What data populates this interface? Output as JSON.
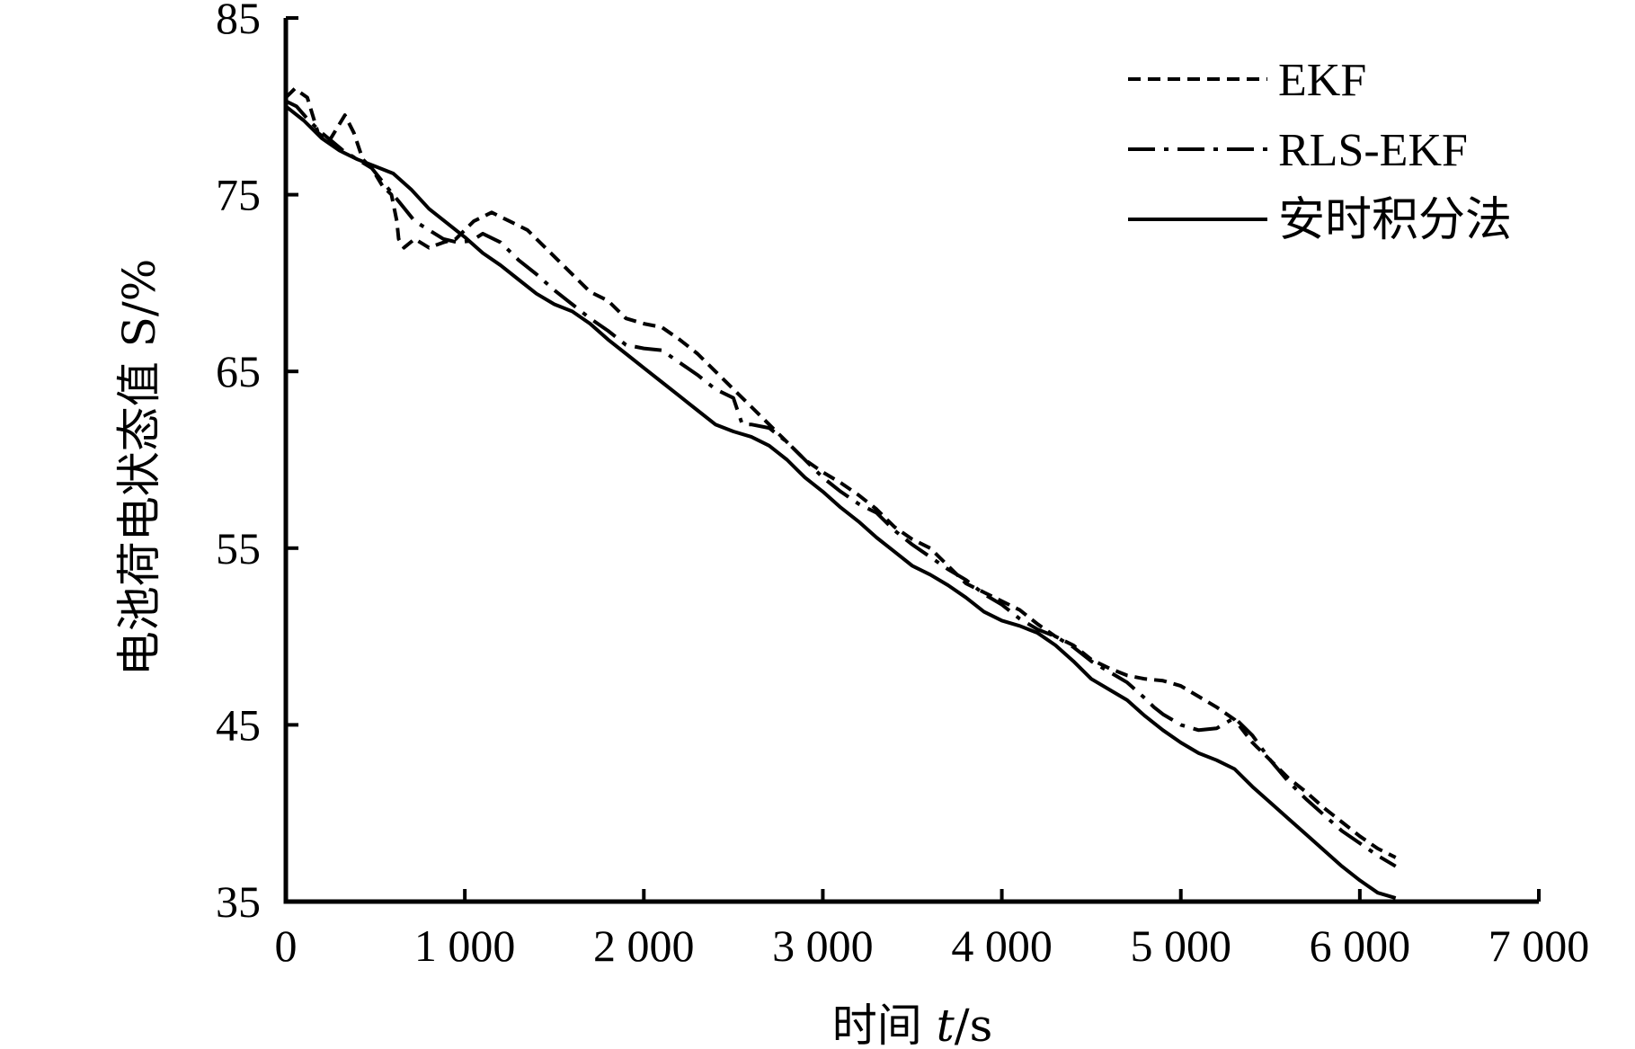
{
  "chart_data": {
    "type": "line",
    "title": "",
    "xlabel": "时间 t/s",
    "xlabel_parts": [
      "时间 ",
      "t",
      "/s"
    ],
    "ylabel": "电池荷电状态值 S/%",
    "xlim": [
      0,
      7000
    ],
    "ylim": [
      35,
      85
    ],
    "x_ticks": [
      0,
      1000,
      2000,
      3000,
      4000,
      5000,
      6000,
      7000
    ],
    "x_tick_labels": [
      "0",
      "1 000",
      "2 000",
      "3 000",
      "4 000",
      "5 000",
      "6 000",
      "7 000"
    ],
    "y_ticks": [
      35,
      45,
      55,
      65,
      75,
      85
    ],
    "y_tick_labels": [
      "35",
      "45",
      "55",
      "65",
      "75",
      "85"
    ],
    "grid": false,
    "legend_position": "top-right",
    "series": [
      {
        "name": "EKF",
        "line_style": "dashed",
        "color": "#000000",
        "x": [
          0,
          50,
          120,
          180,
          240,
          300,
          330,
          380,
          430,
          480,
          540,
          590,
          620,
          630,
          660,
          720,
          800,
          880,
          950,
          1000,
          1050,
          1150,
          1250,
          1350,
          1400,
          1500,
          1600,
          1700,
          1800,
          1900,
          2000,
          2100,
          2200,
          2300,
          2400,
          2500,
          2600,
          2700,
          2800,
          2900,
          3000,
          3100,
          3200,
          3300,
          3400,
          3500,
          3600,
          3700,
          3800,
          3900,
          4000,
          4100,
          4200,
          4300,
          4400,
          4500,
          4600,
          4700,
          4800,
          4900,
          5000,
          5100,
          5200,
          5300,
          5400,
          5500,
          5600,
          5700,
          5800,
          5900,
          6000,
          6100,
          6200
        ],
        "y": [
          80.5,
          81.0,
          80.5,
          78.5,
          78.0,
          79.0,
          79.5,
          78.5,
          77.0,
          76.5,
          75.5,
          75.0,
          73.5,
          72.5,
          72.0,
          72.5,
          72.0,
          72.3,
          72.5,
          73.0,
          73.5,
          74.0,
          73.5,
          73.0,
          72.5,
          71.5,
          70.5,
          69.5,
          69.0,
          68.0,
          67.7,
          67.5,
          66.8,
          66.0,
          65.0,
          64.0,
          63.0,
          62.0,
          61.0,
          60.0,
          59.3,
          58.7,
          58.0,
          57.2,
          56.2,
          55.5,
          55.0,
          54.0,
          53.0,
          52.5,
          52.0,
          51.5,
          50.7,
          50.0,
          49.5,
          48.7,
          48.2,
          47.8,
          47.6,
          47.5,
          47.2,
          46.6,
          46.0,
          45.3,
          44.0,
          43.0,
          42.0,
          41.2,
          40.3,
          39.5,
          38.7,
          38.0,
          37.5
        ]
      },
      {
        "name": "RLS-EKF",
        "line_style": "dashdot",
        "color": "#000000",
        "x": [
          0,
          60,
          120,
          200,
          260,
          320,
          400,
          480,
          560,
          640,
          720,
          800,
          880,
          960,
          1040,
          1100,
          1200,
          1300,
          1400,
          1500,
          1600,
          1700,
          1800,
          1900,
          2000,
          2100,
          2200,
          2300,
          2400,
          2500,
          2550,
          2600,
          2700,
          2800,
          2900,
          3000,
          3100,
          3200,
          3300,
          3400,
          3500,
          3600,
          3700,
          3800,
          3900,
          4000,
          4100,
          4200,
          4300,
          4400,
          4500,
          4600,
          4700,
          4800,
          4850,
          4900,
          4950,
          5000,
          5100,
          5200,
          5300,
          5400,
          5500,
          5600,
          5700,
          5800,
          5900,
          6000,
          6100,
          6200
        ],
        "y": [
          80.3,
          80.0,
          79.3,
          78.5,
          78.0,
          77.5,
          77.0,
          76.5,
          75.5,
          74.5,
          73.5,
          73.0,
          72.5,
          72.3,
          72.4,
          72.8,
          72.3,
          71.3,
          70.5,
          69.6,
          68.8,
          68.0,
          67.3,
          66.5,
          66.3,
          66.2,
          65.5,
          64.8,
          64.0,
          63.5,
          62.0,
          62.0,
          61.8,
          61.0,
          60.0,
          59.0,
          58.2,
          57.5,
          57.0,
          56.0,
          55.2,
          54.5,
          53.8,
          53.2,
          52.4,
          51.8,
          51.0,
          50.4,
          50.0,
          49.4,
          48.6,
          48.0,
          47.4,
          46.5,
          46.0,
          45.6,
          45.3,
          45.0,
          44.7,
          44.8,
          45.4,
          44.4,
          43.0,
          41.8,
          40.8,
          39.9,
          39.0,
          38.3,
          37.6,
          37.0
        ]
      },
      {
        "name": "安时积分法",
        "line_style": "solid",
        "color": "#000000",
        "x": [
          0,
          100,
          200,
          300,
          400,
          500,
          600,
          700,
          800,
          900,
          1000,
          1100,
          1200,
          1300,
          1400,
          1500,
          1600,
          1700,
          1800,
          1900,
          2000,
          2100,
          2200,
          2300,
          2400,
          2500,
          2600,
          2700,
          2800,
          2900,
          3000,
          3100,
          3200,
          3300,
          3400,
          3500,
          3600,
          3700,
          3800,
          3900,
          4000,
          4100,
          4200,
          4300,
          4400,
          4500,
          4600,
          4700,
          4800,
          4900,
          5000,
          5100,
          5200,
          5300,
          5400,
          5500,
          5600,
          5700,
          5800,
          5900,
          6000,
          6100,
          6200
        ],
        "y": [
          80.0,
          79.2,
          78.2,
          77.5,
          77.0,
          76.6,
          76.2,
          75.3,
          74.2,
          73.4,
          72.6,
          71.7,
          71.0,
          70.2,
          69.4,
          68.8,
          68.4,
          67.7,
          66.8,
          66.0,
          65.2,
          64.4,
          63.6,
          62.8,
          62.0,
          61.6,
          61.3,
          60.8,
          60.0,
          59.0,
          58.2,
          57.3,
          56.5,
          55.6,
          54.8,
          54.0,
          53.5,
          52.9,
          52.2,
          51.4,
          50.9,
          50.6,
          50.2,
          49.5,
          48.6,
          47.6,
          47.0,
          46.4,
          45.5,
          44.7,
          44.0,
          43.4,
          43.0,
          42.5,
          41.5,
          40.6,
          39.7,
          38.8,
          37.9,
          37.0,
          36.2,
          35.5,
          35.2
        ]
      }
    ]
  }
}
